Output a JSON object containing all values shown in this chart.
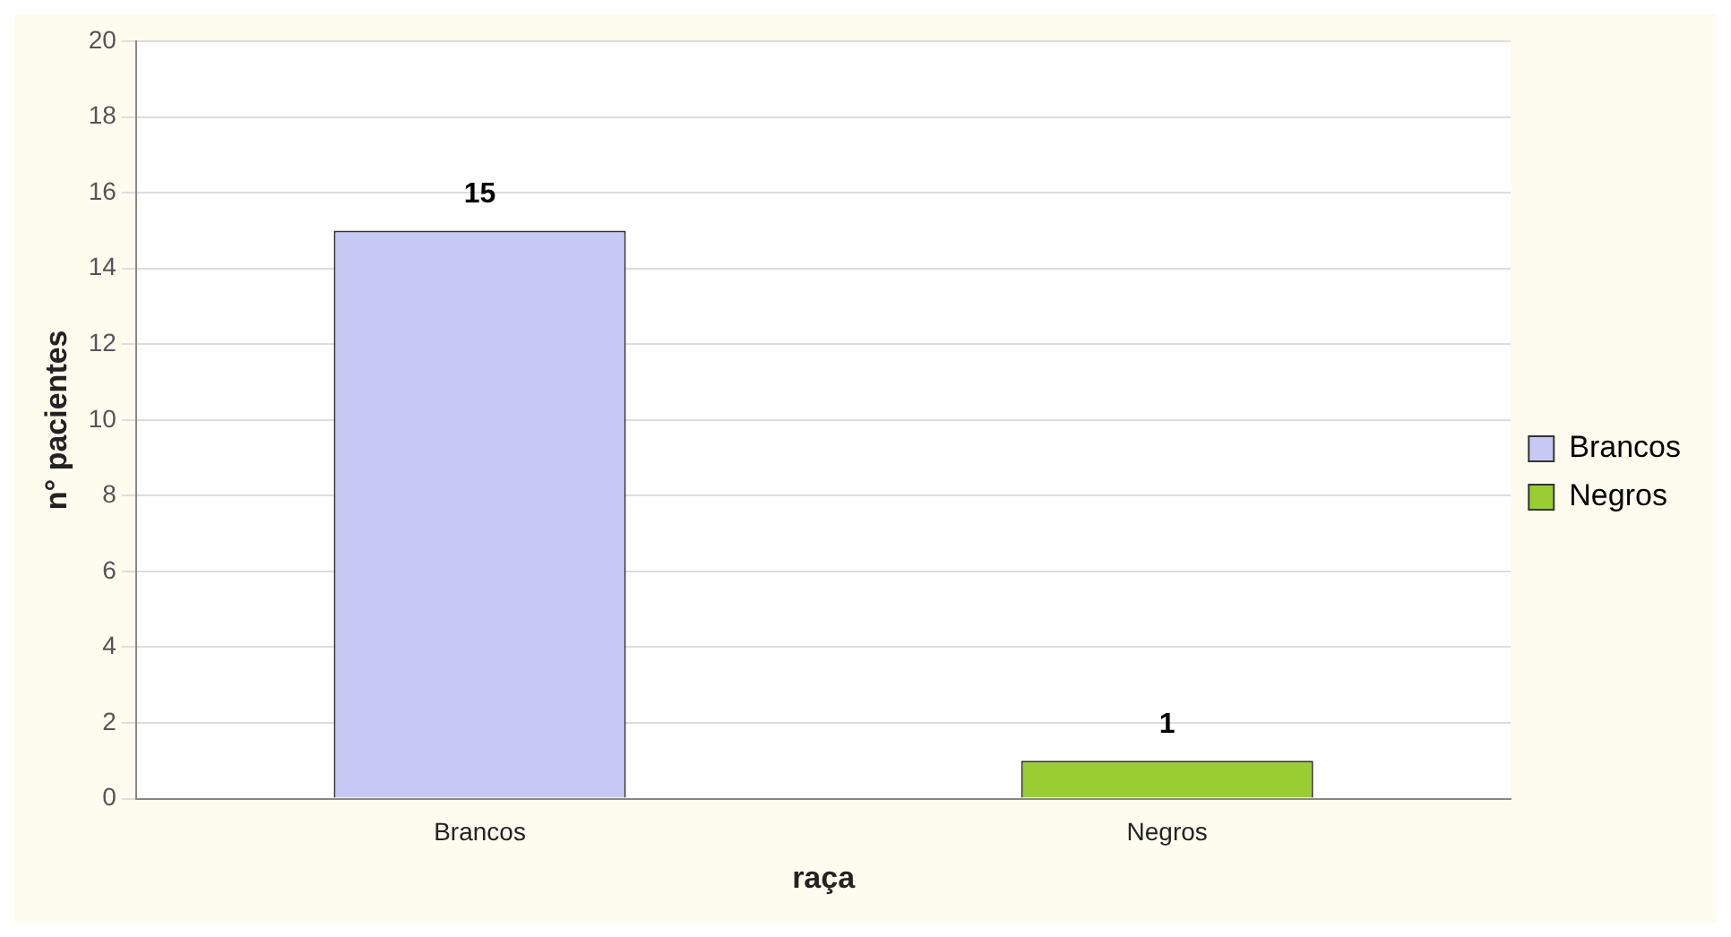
{
  "chart_data": {
    "type": "bar",
    "xlabel": "raça",
    "ylabel": "n° pacientes",
    "categories": [
      "Brancos",
      "Negros"
    ],
    "series": [
      {
        "name": "Brancos",
        "color": "#c8c8f4",
        "values": [
          15,
          null
        ]
      },
      {
        "name": "Negros",
        "color": "#9acd32",
        "values": [
          null,
          1
        ]
      }
    ],
    "ylim": [
      0,
      20
    ],
    "yticks": [
      0,
      2,
      4,
      6,
      8,
      10,
      12,
      14,
      16,
      18,
      20
    ],
    "grid": "y",
    "legend": "right",
    "data_labels": true
  }
}
